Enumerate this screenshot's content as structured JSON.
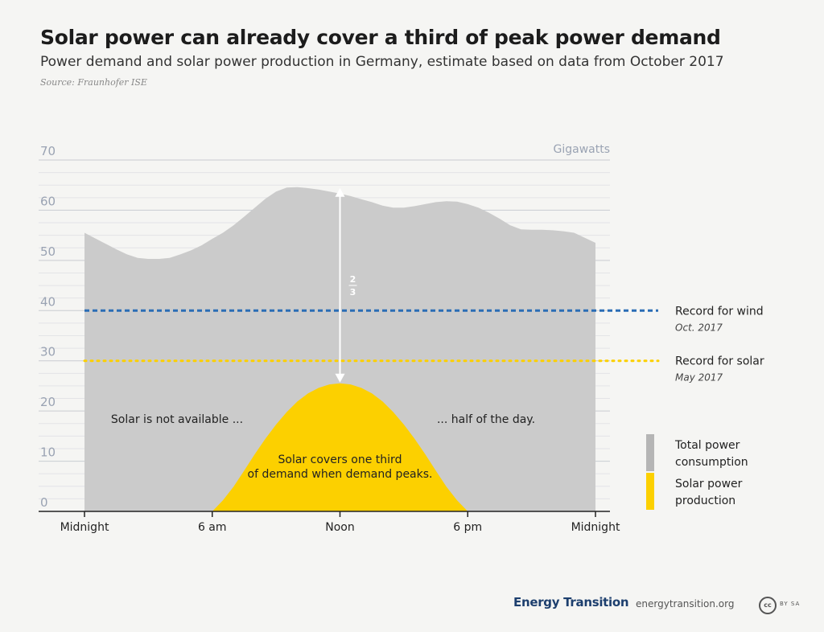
{
  "header": {
    "title": "Solar power can already cover a third of peak power demand",
    "subtitle": "Power demand and solar power production in Germany, estimate based on data from October 2017",
    "source": "Source: Fraunhofer ISE"
  },
  "chart_data": {
    "type": "area",
    "unit_label": "Gigawatts",
    "y_ticks": [
      0,
      10,
      20,
      30,
      40,
      50,
      60,
      70
    ],
    "ylim": [
      0,
      70
    ],
    "x_ticks": [
      {
        "hour": 0,
        "label": "Midnight"
      },
      {
        "hour": 6,
        "label": "6 am"
      },
      {
        "hour": 12,
        "label": "Noon"
      },
      {
        "hour": 18,
        "label": "6 pm"
      },
      {
        "hour": 24,
        "label": "Midnight"
      }
    ],
    "xlim": [
      0,
      24
    ],
    "grid": true,
    "series": [
      {
        "name": "Total power consumption",
        "color": "#cbcbcb",
        "x": [
          0,
          0.5,
          1,
          1.5,
          2,
          2.5,
          3,
          3.5,
          4,
          4.5,
          5,
          5.5,
          6,
          6.5,
          7,
          7.5,
          8,
          8.5,
          9,
          9.5,
          10,
          10.5,
          11,
          11.5,
          12,
          12.5,
          13,
          13.5,
          14,
          14.5,
          15,
          15.5,
          16,
          16.5,
          17,
          17.5,
          18,
          18.5,
          19,
          19.5,
          20,
          20.5,
          21,
          21.5,
          22,
          22.5,
          23,
          23.5,
          24
        ],
        "values": [
          55.5,
          54.4,
          53.3,
          52.2,
          51.2,
          50.5,
          50.3,
          50.3,
          50.5,
          51.2,
          52,
          53,
          54.3,
          55.5,
          57,
          58.7,
          60.5,
          62.3,
          63.7,
          64.5,
          64.6,
          64.4,
          64.1,
          63.7,
          63.3,
          62.8,
          62.2,
          61.6,
          60.9,
          60.5,
          60.5,
          60.8,
          61.2,
          61.6,
          61.8,
          61.7,
          61.2,
          60.5,
          59.5,
          58.3,
          57,
          56.2,
          56.1,
          56.1,
          56,
          55.8,
          55.5,
          54.5,
          53.5
        ]
      },
      {
        "name": "Solar power production",
        "color": "#fcd000",
        "x": [
          6,
          6.5,
          7,
          7.5,
          8,
          8.5,
          9,
          9.5,
          10,
          10.5,
          11,
          11.5,
          12,
          12.5,
          13,
          13.5,
          14,
          14.5,
          15,
          15.5,
          16,
          16.5,
          17,
          17.5,
          18
        ],
        "values": [
          0,
          2.2,
          4.9,
          8.1,
          11.4,
          14.5,
          17.3,
          19.8,
          21.9,
          23.5,
          24.6,
          25.3,
          25.5,
          25.3,
          24.6,
          23.5,
          21.9,
          19.8,
          17.3,
          14.5,
          11.4,
          8.1,
          4.9,
          2.2,
          0
        ]
      }
    ],
    "reference_lines": [
      {
        "label": "Record for wind",
        "sublabel": "Oct. 2017",
        "value": 40,
        "color": "#2a6db5",
        "style": "dashed"
      },
      {
        "label": "Record for solar",
        "sublabel": "May 2017",
        "value": 30,
        "color": "#fcd000",
        "style": "dotted"
      }
    ],
    "arrow": {
      "x_hour": 12,
      "from": 25.5,
      "to": 64.6,
      "label_num": "2",
      "label_den": "3"
    },
    "annotations": {
      "left": "Solar is not available ...",
      "right": "... half of the day.",
      "center_line1": "Solar covers one third",
      "center_line2": "of demand when demand peaks."
    },
    "legend": {
      "position": "right",
      "items": [
        {
          "line1": "Total power",
          "line2": "consumption",
          "color": "#b5b5b5"
        },
        {
          "line1": "Solar power",
          "line2": "production",
          "color": "#fcd000"
        }
      ]
    }
  },
  "footer": {
    "brand": "Energy Transition",
    "url": "energytransition.org",
    "license_icon": "cc",
    "license": "BY SA"
  }
}
